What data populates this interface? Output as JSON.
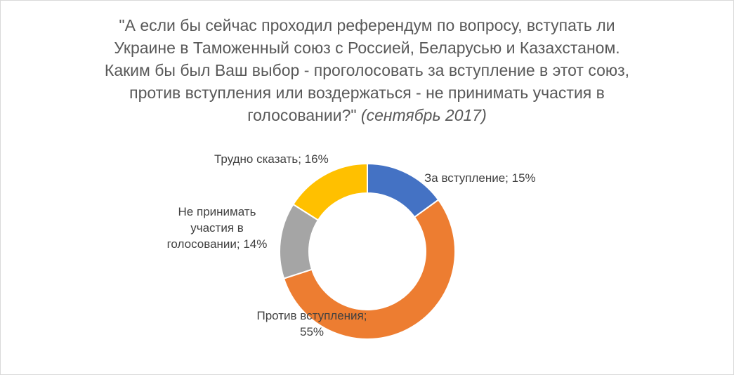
{
  "chart_data": {
    "type": "pie",
    "donut": true,
    "title_lines": [
      "\"А если бы сейчас проходил референдум по вопросу, вступать ли",
      "Украине в Таможенный союз с Россией, Беларусью и Казахстаном.",
      "Каким бы был Ваш выбор  - проголосовать за вступление в этот союз,",
      "против вступления или воздержаться - не принимать участия в"
    ],
    "title_last_line": "голосовании?\"",
    "title_date": "(сентябрь 2017)",
    "slices": [
      {
        "label": "За вступление",
        "value": 15,
        "color": "#4472C4",
        "display_lines": [
          "За вступление; 15%"
        ]
      },
      {
        "label": "Против вступления",
        "value": 55,
        "color": "#ED7D31",
        "display_lines": [
          "Против вступления;",
          "55%"
        ]
      },
      {
        "label": "Не принимать участия в голосовании",
        "value": 14,
        "color": "#A5A5A5",
        "display_lines": [
          "Не принимать",
          "участия в",
          "голосовании; 14%"
        ]
      },
      {
        "label": "Трудно сказать",
        "value": 16,
        "color": "#FFC000",
        "display_lines": [
          "Трудно сказать; 16%"
        ]
      }
    ],
    "legend": "none"
  }
}
